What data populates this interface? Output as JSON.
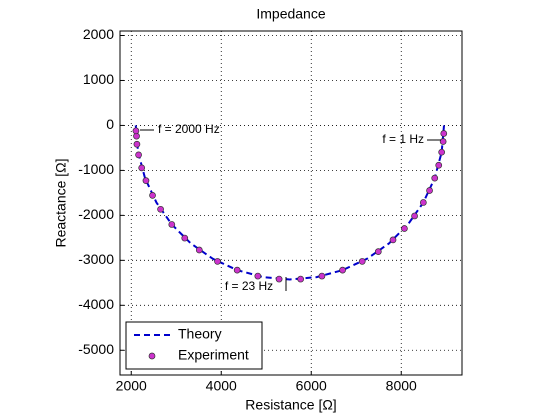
{
  "chart_data": {
    "type": "line-scatter",
    "title": "Impedance",
    "x_label": "Resistance  [Ω]",
    "y_label": "Reactance  [Ω]",
    "xlim": [
      1750,
      9350
    ],
    "ylim": [
      -5550,
      2100
    ],
    "xticks": [
      2000,
      4000,
      6000,
      8000
    ],
    "yticks": [
      -5000,
      -4000,
      -3000,
      -2000,
      -1000,
      0,
      1000,
      2000
    ],
    "grid": true,
    "legend": "lower left",
    "annotations": [
      "f = 2000 Hz",
      "f = 1 Hz",
      "f = 23 Hz"
    ],
    "series": [
      {
        "name": "Theory",
        "type": "line",
        "color": "#0000cc",
        "x": [
          8950,
          8898,
          8744,
          8491,
          8149,
          7727,
          7238,
          6696,
          6120,
          5525,
          4930,
          4354,
          3813,
          3323,
          2901,
          2559,
          2306,
          2152,
          2100
        ],
        "values": [
          0,
          -595,
          -1171,
          -1713,
          -2202,
          -2624,
          -2966,
          -3218,
          -3373,
          -3425,
          -3373,
          -3218,
          -2966,
          -2624,
          -2202,
          -1713,
          -1171,
          -595,
          0
        ]
      },
      {
        "name": "Experiment",
        "type": "scatter",
        "color": "#cc33cc",
        "x": [
          8945,
          8931,
          8898,
          8833,
          8744,
          8629,
          8491,
          8296,
          8070,
          7817,
          7490,
          7133,
          6696,
          6237,
          5764,
          5286,
          4813,
          4354,
          3917,
          3512,
          3189,
          2901,
          2652,
          2473,
          2327,
          2232,
          2163,
          2126,
          2117,
          2104
        ],
        "values": [
          -179,
          -358,
          -595,
          -886,
          -1171,
          -1447,
          -1713,
          -2013,
          -2292,
          -2545,
          -2806,
          -3024,
          -3218,
          -3350,
          -3417,
          -3417,
          -3350,
          -3218,
          -3024,
          -2771,
          -2505,
          -2202,
          -1865,
          -1555,
          -1228,
          -944,
          -654,
          -418,
          -239,
          -120
        ]
      }
    ]
  }
}
